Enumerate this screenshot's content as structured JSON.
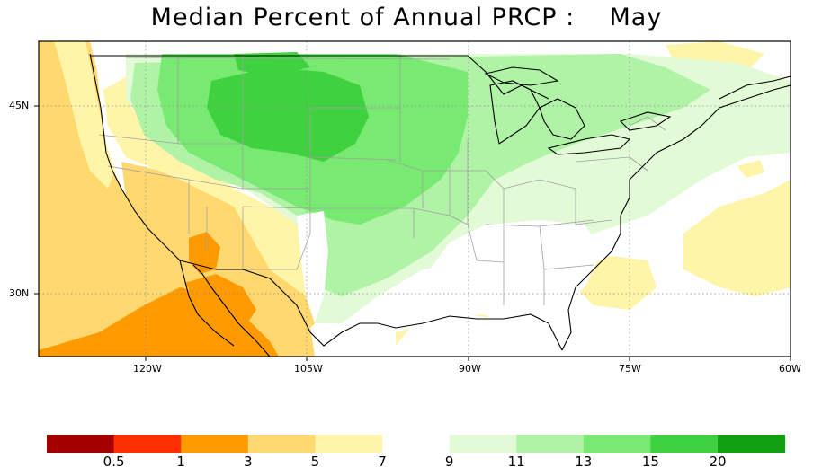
{
  "title": "Median Percent of Annual PRCP :    May",
  "axes": {
    "lat_labels": [
      "45N",
      "30N"
    ],
    "lon_labels": [
      "120W",
      "105W",
      "90W",
      "75W",
      "60W"
    ]
  },
  "map_extent": {
    "lon_min": -130,
    "lon_max": -60,
    "lat_min": 24,
    "lat_max": 50
  },
  "legend": {
    "colors": [
      "#a50000",
      "#ff3000",
      "#ff9a00",
      "#ffd870",
      "#fff5a8",
      "#ffffff",
      "#e2fbd6",
      "#b0f2a6",
      "#78ea72",
      "#3fd13f",
      "#10a010"
    ],
    "labels": [
      "0.5",
      "1",
      "3",
      "5",
      "7",
      "9",
      "11",
      "13",
      "15",
      "20"
    ]
  },
  "colors": {
    "orange": "#ff9a00",
    "light_orange": "#ffd870",
    "yellow": "#fff5a8",
    "very_light_green": "#e2fbd6",
    "light_green": "#b0f2a6",
    "green": "#78ea72",
    "dark_green": "#3fd13f",
    "coastline": "#000000",
    "state_border": "#a0a0a0",
    "grid": "#888888"
  }
}
